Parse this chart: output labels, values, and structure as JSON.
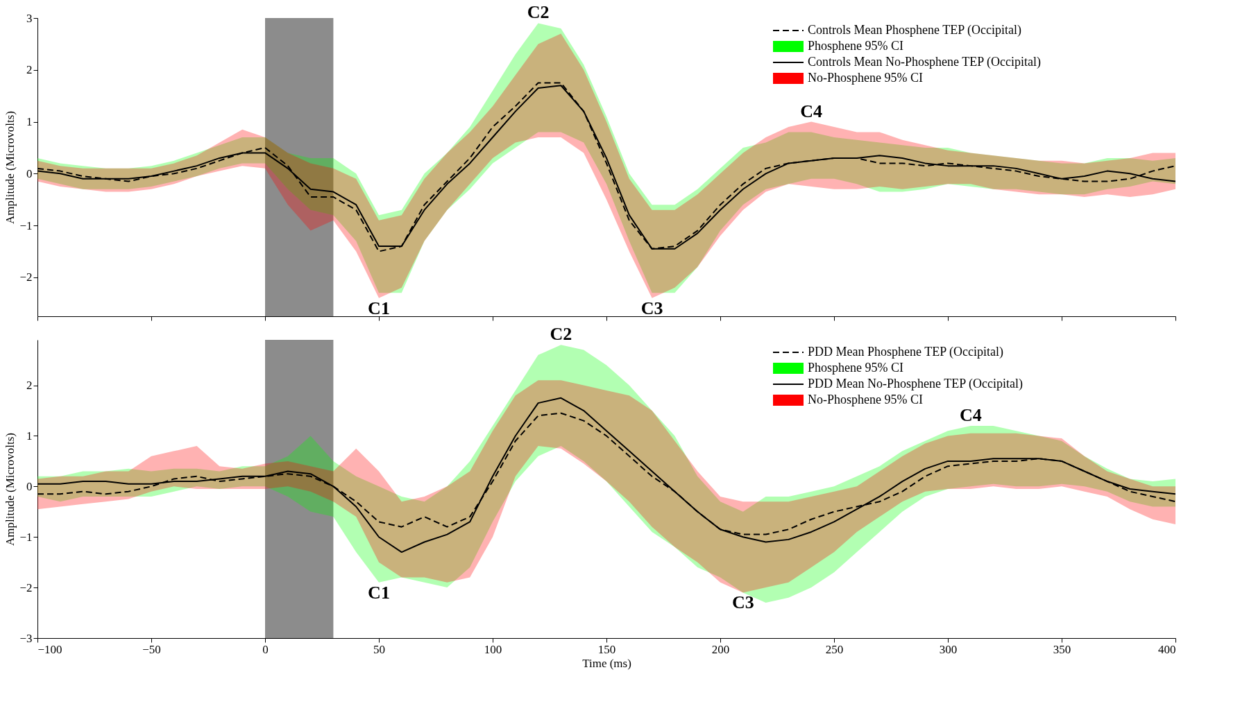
{
  "chart_data": [
    {
      "type": "line",
      "ylabel": "Amplitude (Microvolts)",
      "xlim": [
        -100,
        400
      ],
      "xticks": [
        -100,
        -50,
        0,
        50,
        100,
        150,
        200,
        250,
        300,
        350,
        400
      ],
      "ylim": [
        -2.75,
        3
      ],
      "yticks": [
        -2,
        -1,
        0,
        1,
        2,
        3
      ],
      "tick_labels": "y",
      "grid": false,
      "legend": "top right",
      "x": [
        -100,
        -90,
        -80,
        -70,
        -60,
        -50,
        -40,
        -30,
        -20,
        -10,
        0,
        10,
        20,
        30,
        40,
        50,
        60,
        70,
        80,
        90,
        100,
        110,
        120,
        130,
        140,
        150,
        160,
        170,
        180,
        190,
        200,
        210,
        220,
        230,
        240,
        250,
        260,
        270,
        280,
        290,
        300,
        310,
        320,
        330,
        340,
        350,
        360,
        370,
        380,
        390,
        400
      ],
      "bands": [
        {
          "axis": "x",
          "from": 0,
          "to": 30,
          "color": "#808080"
        }
      ],
      "annotations": [
        {
          "text": "C1",
          "x": 50,
          "y": -2.4
        },
        {
          "text": "C2",
          "x": 120,
          "y": 2.9
        },
        {
          "text": "C3",
          "x": 170,
          "y": -2.4
        },
        {
          "text": "C4",
          "x": 240,
          "y": 1.0
        }
      ],
      "series": [
        {
          "name": "Controls Mean Phosphene TEP (Occipital)",
          "color": "#000000",
          "line_style": "dashed",
          "values": [
            0.1,
            0.05,
            -0.05,
            -0.1,
            -0.15,
            -0.05,
            0,
            0.1,
            0.25,
            0.4,
            0.5,
            0.15,
            -0.45,
            -0.45,
            -0.7,
            -1.5,
            -1.4,
            -0.6,
            -0.15,
            0.3,
            0.9,
            1.3,
            1.75,
            1.75,
            1.2,
            0.2,
            -0.9,
            -1.45,
            -1.4,
            -1.1,
            -0.6,
            -0.2,
            0.1,
            0.2,
            0.25,
            0.3,
            0.3,
            0.2,
            0.2,
            0.15,
            0.2,
            0.15,
            0.1,
            0.05,
            -0.05,
            -0.1,
            -0.15,
            -0.15,
            -0.1,
            0.05,
            0.15
          ]
        },
        {
          "type": "area",
          "name": "Phosphene 95% CI",
          "color": "#00ff00",
          "lower": [
            -0.1,
            -0.2,
            -0.3,
            -0.3,
            -0.3,
            -0.25,
            -0.15,
            -0.05,
            0.1,
            0.2,
            0.2,
            -0.3,
            -0.7,
            -0.8,
            -1.3,
            -2.3,
            -2.3,
            -1.3,
            -0.7,
            -0.3,
            0.2,
            0.5,
            0.8,
            0.8,
            0.6,
            -0.2,
            -1.3,
            -2.3,
            -2.3,
            -1.8,
            -1.1,
            -0.6,
            -0.3,
            -0.2,
            -0.1,
            -0.1,
            -0.2,
            -0.35,
            -0.35,
            -0.3,
            -0.2,
            -0.25,
            -0.3,
            -0.3,
            -0.35,
            -0.4,
            -0.4,
            -0.3,
            -0.25,
            -0.15,
            -0.2
          ],
          "values": [
            null,
            null,
            null,
            null,
            null,
            null,
            null,
            null,
            null,
            null,
            null,
            null,
            null,
            null,
            null,
            null,
            null,
            null,
            null,
            null,
            null,
            null,
            null,
            null,
            null,
            null,
            null,
            null,
            null,
            null,
            null,
            null,
            null,
            null,
            null,
            null,
            null,
            null,
            null,
            null,
            null,
            null,
            null,
            null,
            null,
            null,
            null,
            null,
            null,
            null,
            null
          ],
          "upper": [
            0.3,
            0.2,
            0.15,
            0.1,
            0.1,
            0.15,
            0.25,
            0.4,
            0.55,
            0.7,
            0.7,
            0.4,
            0.3,
            0.3,
            0,
            -0.8,
            -0.7,
            0,
            0.4,
            0.9,
            1.6,
            2.3,
            2.9,
            2.8,
            2.1,
            1.1,
            0,
            -0.6,
            -0.6,
            -0.3,
            0.1,
            0.5,
            0.6,
            0.8,
            0.8,
            0.7,
            0.65,
            0.6,
            0.55,
            0.5,
            0.5,
            0.4,
            0.35,
            0.3,
            0.25,
            0.2,
            0.2,
            0.3,
            0.3,
            0.25,
            0.3
          ]
        },
        {
          "name": "Controls Mean No-Phosphene TEP (Occipital)",
          "color": "#000000",
          "line_style": "solid",
          "values": [
            0.05,
            0,
            -0.1,
            -0.1,
            -0.1,
            -0.05,
            0.05,
            0.15,
            0.3,
            0.4,
            0.4,
            0.1,
            -0.3,
            -0.35,
            -0.6,
            -1.4,
            -1.4,
            -0.7,
            -0.2,
            0.2,
            0.7,
            1.2,
            1.65,
            1.7,
            1.2,
            0.3,
            -0.8,
            -1.45,
            -1.45,
            -1.15,
            -0.7,
            -0.3,
            0,
            0.2,
            0.25,
            0.3,
            0.3,
            0.35,
            0.3,
            0.2,
            0.15,
            0.15,
            0.15,
            0.1,
            0,
            -0.1,
            -0.05,
            0.05,
            0,
            -0.1,
            -0.15
          ]
        },
        {
          "type": "area",
          "name": "No-Phosphene 95% CI",
          "color": "#ff0000",
          "lower": [
            -0.15,
            -0.25,
            -0.3,
            -0.35,
            -0.35,
            -0.3,
            -0.2,
            -0.05,
            0.05,
            0.15,
            0.1,
            -0.6,
            -1.1,
            -0.9,
            -1.5,
            -2.4,
            -2.2,
            -1.3,
            -0.7,
            -0.2,
            0.3,
            0.6,
            0.7,
            0.7,
            0.4,
            -0.5,
            -1.5,
            -2.4,
            -2.2,
            -1.8,
            -1.2,
            -0.7,
            -0.35,
            -0.2,
            -0.25,
            -0.3,
            -0.3,
            -0.25,
            -0.3,
            -0.25,
            -0.2,
            -0.2,
            -0.3,
            -0.35,
            -0.4,
            -0.4,
            -0.45,
            -0.4,
            -0.45,
            -0.4,
            -0.3
          ],
          "values": [
            null,
            null,
            null,
            null,
            null,
            null,
            null,
            null,
            null,
            null,
            null,
            null,
            null,
            null,
            null,
            null,
            null,
            null,
            null,
            null,
            null,
            null,
            null,
            null,
            null,
            null,
            null,
            null,
            null,
            null,
            null,
            null,
            null,
            null,
            null,
            null,
            null,
            null,
            null,
            null,
            null,
            null,
            null,
            null,
            null,
            null,
            null,
            null,
            null,
            null,
            null
          ],
          "upper": [
            0.25,
            0.15,
            0.1,
            0.1,
            0.1,
            0.1,
            0.2,
            0.35,
            0.6,
            0.85,
            0.7,
            0.4,
            0.2,
            0.1,
            -0.1,
            -0.9,
            -0.8,
            -0.1,
            0.4,
            0.8,
            1.3,
            1.9,
            2.5,
            2.7,
            2.0,
            1.0,
            -0.1,
            -0.7,
            -0.7,
            -0.4,
            0,
            0.4,
            0.7,
            0.9,
            1.0,
            0.9,
            0.8,
            0.8,
            0.65,
            0.55,
            0.45,
            0.4,
            0.35,
            0.3,
            0.25,
            0.25,
            0.2,
            0.25,
            0.3,
            0.4,
            0.4
          ]
        }
      ]
    },
    {
      "type": "line",
      "xlabel": "Time (ms)",
      "ylabel": "Amplitude (Microvolts)",
      "xlim": [
        -100,
        400
      ],
      "xticks": [
        -100,
        -50,
        0,
        50,
        100,
        150,
        200,
        250,
        300,
        350,
        400
      ],
      "ylim": [
        -3,
        2.9
      ],
      "yticks": [
        -3,
        -2,
        -1,
        0,
        1,
        2
      ],
      "grid": false,
      "legend": "top right",
      "x": [
        -100,
        -90,
        -80,
        -70,
        -60,
        -50,
        -40,
        -30,
        -20,
        -10,
        0,
        10,
        20,
        30,
        40,
        50,
        60,
        70,
        80,
        90,
        100,
        110,
        120,
        130,
        140,
        150,
        160,
        170,
        180,
        190,
        200,
        210,
        220,
        230,
        240,
        250,
        260,
        270,
        280,
        290,
        300,
        310,
        320,
        330,
        340,
        350,
        360,
        370,
        380,
        390,
        400
      ],
      "bands": [
        {
          "axis": "x",
          "from": 0,
          "to": 30,
          "color": "#808080"
        }
      ],
      "annotations": [
        {
          "text": "C1",
          "x": 50,
          "y": -1.9
        },
        {
          "text": "C2",
          "x": 130,
          "y": 2.8
        },
        {
          "text": "C3",
          "x": 210,
          "y": -2.1
        },
        {
          "text": "C4",
          "x": 310,
          "y": 1.2
        }
      ],
      "series": [
        {
          "name": "PDD Mean Phosphene TEP (Occipital)",
          "color": "#000000",
          "line_style": "dashed",
          "values": [
            -0.15,
            -0.15,
            -0.1,
            -0.15,
            -0.1,
            0,
            0.15,
            0.2,
            0.1,
            0.15,
            0.2,
            0.25,
            0.2,
            0,
            -0.3,
            -0.7,
            -0.8,
            -0.6,
            -0.8,
            -0.6,
            0.1,
            0.9,
            1.4,
            1.45,
            1.3,
            1.0,
            0.6,
            0.2,
            -0.1,
            -0.5,
            -0.85,
            -0.95,
            -0.95,
            -0.85,
            -0.65,
            -0.5,
            -0.4,
            -0.3,
            -0.1,
            0.2,
            0.4,
            0.45,
            0.5,
            0.5,
            0.55,
            0.5,
            0.3,
            0.1,
            -0.1,
            -0.2,
            -0.3
          ]
        },
        {
          "type": "area",
          "name": "Phosphene 95% CI",
          "color": "#00ff00",
          "lower": [
            -0.2,
            -0.3,
            -0.2,
            -0.2,
            -0.2,
            -0.2,
            -0.1,
            0,
            -0.05,
            0,
            0,
            -0.2,
            -0.5,
            -0.6,
            -1.3,
            -1.9,
            -1.8,
            -1.9,
            -2.0,
            -1.6,
            -0.7,
            0.1,
            0.6,
            0.8,
            0.5,
            0.1,
            -0.4,
            -0.9,
            -1.2,
            -1.6,
            -1.8,
            -2.1,
            -2.3,
            -2.2,
            -2.0,
            -1.7,
            -1.3,
            -0.9,
            -0.5,
            -0.2,
            -0.05,
            0,
            0.05,
            0,
            0,
            0.05,
            0,
            -0.1,
            -0.3,
            -0.4,
            -0.4
          ],
          "values": [
            null,
            null,
            null,
            null,
            null,
            null,
            null,
            null,
            null,
            null,
            null,
            null,
            null,
            null,
            null,
            null,
            null,
            null,
            null,
            null,
            null,
            null,
            null,
            null,
            null,
            null,
            null,
            null,
            null,
            null,
            null,
            null,
            null,
            null,
            null,
            null,
            null,
            null,
            null,
            null,
            null,
            null,
            null,
            null,
            null,
            null,
            null,
            null,
            null,
            null,
            null
          ],
          "upper": [
            0.2,
            0.2,
            0.3,
            0.3,
            0.35,
            0.3,
            0.35,
            0.35,
            0.3,
            0.4,
            0.4,
            0.6,
            1.0,
            0.5,
            0.2,
            0,
            -0.2,
            -0.3,
            0,
            0.5,
            1.2,
            1.9,
            2.6,
            2.8,
            2.7,
            2.4,
            2.0,
            1.5,
            1.0,
            0.2,
            -0.3,
            -0.5,
            -0.2,
            -0.2,
            -0.1,
            0,
            0.2,
            0.4,
            0.7,
            0.9,
            1.1,
            1.2,
            1.2,
            1.1,
            1.0,
            0.9,
            0.6,
            0.35,
            0.15,
            0.1,
            0.15
          ]
        },
        {
          "name": "PDD Mean No-Phosphene TEP (Occipital)",
          "color": "#000000",
          "line_style": "solid",
          "values": [
            0.05,
            0.05,
            0.1,
            0.1,
            0.05,
            0.05,
            0.1,
            0.1,
            0.15,
            0.2,
            0.2,
            0.3,
            0.25,
            0,
            -0.4,
            -1.0,
            -1.3,
            -1.1,
            -0.95,
            -0.7,
            0.2,
            1.0,
            1.65,
            1.75,
            1.5,
            1.1,
            0.7,
            0.3,
            -0.1,
            -0.5,
            -0.85,
            -1.0,
            -1.1,
            -1.05,
            -0.9,
            -0.7,
            -0.45,
            -0.2,
            0.1,
            0.35,
            0.5,
            0.5,
            0.55,
            0.55,
            0.55,
            0.5,
            0.3,
            0.1,
            -0.05,
            -0.1,
            -0.15
          ]
        },
        {
          "type": "area",
          "name": "No-Phosphene 95% CI",
          "color": "#ff0000",
          "lower": [
            -0.45,
            -0.4,
            -0.35,
            -0.3,
            -0.25,
            -0.1,
            0,
            -0.05,
            -0.05,
            -0.05,
            -0.05,
            0,
            -0.1,
            -0.3,
            -0.6,
            -1.5,
            -1.8,
            -1.8,
            -1.9,
            -1.8,
            -1.0,
            0.2,
            0.8,
            0.75,
            0.45,
            0.1,
            -0.3,
            -0.8,
            -1.2,
            -1.5,
            -1.9,
            -2.1,
            -2.0,
            -1.9,
            -1.6,
            -1.3,
            -0.9,
            -0.6,
            -0.3,
            -0.1,
            -0.05,
            -0.05,
            0,
            -0.05,
            -0.05,
            0,
            -0.1,
            -0.2,
            -0.45,
            -0.65,
            -0.75
          ],
          "values": [
            null,
            null,
            null,
            null,
            null,
            null,
            null,
            null,
            null,
            null,
            null,
            null,
            null,
            null,
            null,
            null,
            null,
            null,
            null,
            null,
            null,
            null,
            null,
            null,
            null,
            null,
            null,
            null,
            null,
            null,
            null,
            null,
            null,
            null,
            null,
            null,
            null,
            null,
            null,
            null,
            null,
            null,
            null,
            null,
            null,
            null,
            null,
            null,
            null,
            null,
            null
          ],
          "upper": [
            0.15,
            0.2,
            0.2,
            0.3,
            0.3,
            0.6,
            0.7,
            0.8,
            0.4,
            0.35,
            0.45,
            0.5,
            0.4,
            0.3,
            0.75,
            0.3,
            -0.3,
            -0.2,
            0,
            0.3,
            1.1,
            1.8,
            2.1,
            2.1,
            2.0,
            1.9,
            1.8,
            1.5,
            0.9,
            0.3,
            -0.2,
            -0.3,
            -0.3,
            -0.3,
            -0.2,
            -0.1,
            0,
            0.3,
            0.6,
            0.85,
            1.0,
            1.05,
            1.05,
            1.05,
            1.0,
            0.95,
            0.6,
            0.3,
            0.15,
            0,
            0
          ]
        }
      ]
    }
  ]
}
